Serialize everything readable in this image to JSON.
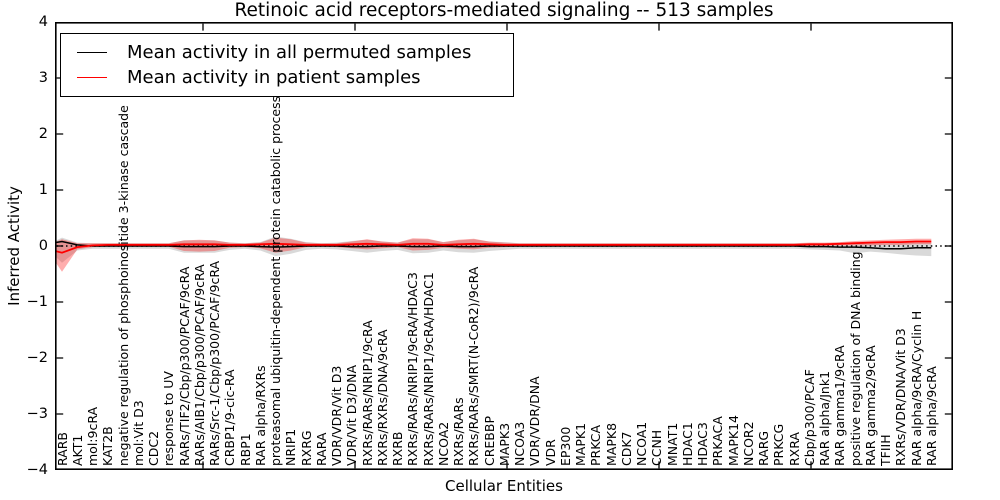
{
  "title": "Retinoic acid receptors-mediated signaling -- 513 samples",
  "axes": {
    "xlabel": "Cellular Entities",
    "ylabel": "Inferred Activity",
    "ytick_labels": [
      "4",
      "3",
      "2",
      "1",
      "0",
      "−1",
      "−2",
      "−3",
      "−4"
    ]
  },
  "colors": {
    "permuted_line": "#000000",
    "patient_line": "#ff0000",
    "permuted_band": "rgba(128,128,128,0.30)",
    "patient_band": "rgba(255,0,0,0.32)",
    "zero_line": "#000000",
    "frame": "#000000"
  },
  "chart_data": {
    "type": "line",
    "title": "Retinoic acid receptors-mediated signaling -- 513 samples",
    "xlabel": "Cellular Entities",
    "ylabel": "Inferred Activity",
    "ylim": [
      -4,
      4
    ],
    "yticks": [
      4,
      3,
      2,
      1,
      0,
      -1,
      -2,
      -3,
      -4
    ],
    "grid": false,
    "legend_position": "upper left",
    "zero_reference_line": "black dotted at y=0",
    "categories": [
      "RARB",
      "AKT1",
      "mol:9cRA",
      "KAT2B",
      "negative regulation of phosphoinositide 3-kinase cascade",
      "mol:Vit D3",
      "CDC2",
      "response to UV",
      "RARs/TIF2/Cbp/p300/PCAF/9cRA",
      "RARs/AIB1/Cbp/p300/PCAF/9cRA",
      "RARs/Src-1/Cbp/p300/PCAF/9cRA",
      "CRBP1/9-cic-RA",
      "RBP1",
      "RAR alpha/RXRs",
      "proteasomal ubiquitin-dependent protein catabolic process",
      "NRIP1",
      "RXRG",
      "RARA",
      "VDR/VDR/Vit D3",
      "VDR/Vit D3/DNA",
      "RXRs/RARs/NRIP1/9cRA",
      "RXRs/RXRs/DNA/9cRA",
      "RXRB",
      "RXRs/RARs/NRIP1/9cRA/HDAC3",
      "RXRs/RARs/NRIP1/9cRA/HDAC1",
      "NCOA2",
      "RXRs/RARs",
      "RXRs/RARs/SMRT(N-CoR2)/9cRA",
      "CREBBP",
      "MAPK3",
      "NCOA3",
      "VDR/VDR/DNA",
      "VDR",
      "EP300",
      "MAPK1",
      "PRKCA",
      "MAPK8",
      "CDK7",
      "NCOA1",
      "CCNH",
      "MNAT1",
      "HDAC1",
      "HDAC3",
      "PRKACA",
      "MAPK14",
      "NCOR2",
      "RARG",
      "PRKCG",
      "RXRA",
      "Cbp/p300/PCAF",
      "RAR alpha/Jnk1",
      "RAR gamma1/9cRA",
      "positive regulation of DNA binding",
      "RAR gamma2/9cRA",
      "TFIIH",
      "RXRs/VDR/DNA/Vit D3",
      "RAR alpha/9cRA/Cyclin H",
      "RAR alpha/9cRA"
    ],
    "series": [
      {
        "name": "Mean activity in all permuted samples",
        "color": "#000000",
        "values": [
          0.08,
          0.02,
          0,
          0,
          0,
          0,
          0,
          0,
          -0.01,
          -0.01,
          -0.01,
          0,
          0,
          -0.01,
          -0.02,
          -0.01,
          0,
          0,
          0,
          -0.01,
          -0.01,
          0,
          0,
          -0.01,
          -0.01,
          0,
          -0.01,
          -0.01,
          0,
          0,
          0,
          0,
          0,
          0,
          0,
          0,
          0,
          0,
          0,
          0,
          0,
          0,
          0,
          0,
          0,
          0,
          0,
          0,
          0,
          -0.01,
          -0.01,
          -0.02,
          -0.02,
          -0.03,
          -0.05,
          -0.05,
          -0.03,
          -0.03
        ]
      },
      {
        "name": "Mean activity in patient samples",
        "color": "#ff0000",
        "values": [
          -0.12,
          -0.02,
          0.01,
          0.02,
          0.02,
          0.02,
          0.02,
          0.02,
          0.03,
          0.03,
          0.03,
          0.02,
          0.02,
          0.03,
          0.04,
          0.03,
          0.02,
          0.02,
          0.02,
          0.03,
          0.04,
          0.03,
          0.02,
          0.04,
          0.04,
          0.02,
          0.03,
          0.04,
          0.03,
          0.02,
          0.02,
          0.02,
          0.02,
          0.02,
          0.02,
          0.02,
          0.02,
          0.02,
          0.02,
          0.02,
          0.02,
          0.02,
          0.02,
          0.02,
          0.02,
          0.02,
          0.02,
          0.02,
          0.02,
          0.03,
          0.03,
          0.04,
          0.05,
          0.06,
          0.07,
          0.07,
          0.08,
          0.08
        ]
      }
    ],
    "bands": [
      {
        "name": "permuted samples std band",
        "color": "rgba(128,128,128,0.30)",
        "upper": [
          0.15,
          0.06,
          0.05,
          0.05,
          0.05,
          0.05,
          0.05,
          0.05,
          0.1,
          0.1,
          0.1,
          0.06,
          0.05,
          0.07,
          0.17,
          0.13,
          0.07,
          0.05,
          0.06,
          0.09,
          0.11,
          0.08,
          0.06,
          0.12,
          0.12,
          0.07,
          0.1,
          0.12,
          0.08,
          0.07,
          0.05,
          0.05,
          0.05,
          0.05,
          0.05,
          0.05,
          0.05,
          0.05,
          0.05,
          0.05,
          0.05,
          0.05,
          0.05,
          0.05,
          0.05,
          0.05,
          0.05,
          0.05,
          0.05,
          0.05,
          0.05,
          0.06,
          0.06,
          0.05,
          0.05,
          0.06,
          0.06,
          0.06
        ],
        "lower": [
          -0.3,
          -0.08,
          -0.05,
          -0.05,
          -0.05,
          -0.05,
          -0.05,
          -0.05,
          -0.12,
          -0.12,
          -0.12,
          -0.07,
          -0.05,
          -0.08,
          -0.18,
          -0.14,
          -0.07,
          -0.05,
          -0.06,
          -0.09,
          -0.12,
          -0.09,
          -0.07,
          -0.13,
          -0.12,
          -0.08,
          -0.11,
          -0.12,
          -0.09,
          -0.07,
          -0.05,
          -0.05,
          -0.05,
          -0.05,
          -0.05,
          -0.05,
          -0.05,
          -0.05,
          -0.05,
          -0.05,
          -0.05,
          -0.05,
          -0.05,
          -0.05,
          -0.05,
          -0.05,
          -0.05,
          -0.05,
          -0.05,
          -0.06,
          -0.07,
          -0.08,
          -0.13,
          -0.1,
          -0.12,
          -0.15,
          -0.17,
          -0.18
        ]
      },
      {
        "name": "patient samples std band",
        "color": "rgba(255,0,0,0.32)",
        "upper": [
          0.12,
          0.05,
          0.05,
          0.05,
          0.05,
          0.05,
          0.05,
          0.05,
          0.1,
          0.11,
          0.1,
          0.06,
          0.05,
          0.06,
          0.15,
          0.12,
          0.06,
          0.05,
          0.05,
          0.08,
          0.12,
          0.08,
          0.06,
          0.14,
          0.13,
          0.07,
          0.11,
          0.13,
          0.08,
          0.06,
          0.05,
          0.05,
          0.05,
          0.05,
          0.05,
          0.05,
          0.05,
          0.05,
          0.05,
          0.05,
          0.05,
          0.05,
          0.05,
          0.05,
          0.05,
          0.05,
          0.05,
          0.05,
          0.05,
          0.06,
          0.06,
          0.07,
          0.09,
          0.1,
          0.11,
          0.12,
          0.13,
          0.13
        ],
        "lower": [
          -0.46,
          -0.06,
          -0.02,
          -0.01,
          -0.01,
          -0.01,
          -0.01,
          -0.01,
          -0.09,
          -0.1,
          -0.09,
          -0.03,
          -0.02,
          -0.04,
          -0.12,
          -0.08,
          -0.02,
          -0.01,
          -0.02,
          -0.04,
          -0.06,
          -0.04,
          -0.02,
          -0.08,
          -0.07,
          -0.03,
          -0.05,
          -0.06,
          -0.03,
          -0.02,
          -0.01,
          -0.01,
          -0.01,
          -0.01,
          -0.01,
          -0.01,
          -0.01,
          -0.01,
          -0.01,
          -0.01,
          -0.01,
          -0.01,
          -0.01,
          -0.01,
          -0.01,
          -0.01,
          -0.01,
          -0.01,
          -0.01,
          -0.01,
          0,
          0.01,
          0.01,
          0.01,
          0.02,
          0.02,
          0.03,
          0.03
        ]
      }
    ]
  }
}
